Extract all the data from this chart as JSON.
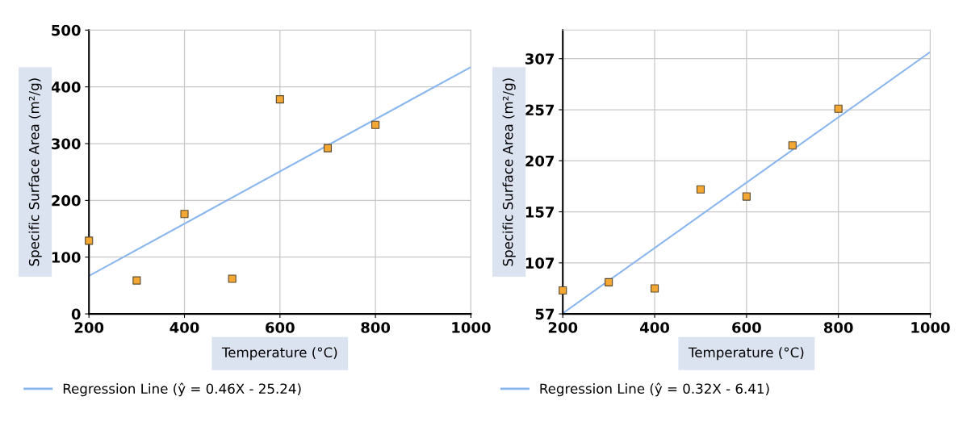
{
  "chart_data": [
    {
      "type": "scatter",
      "xlabel": "Temperature (°C)",
      "ylabel": "Specific Surface Area (m²/g)",
      "xlim": [
        200,
        1000
      ],
      "xticks": [
        200,
        400,
        600,
        800,
        1000
      ],
      "ylim": [
        0,
        500
      ],
      "yticks": [
        0,
        100,
        200,
        300,
        400,
        500
      ],
      "grid": true,
      "legend": "bottom",
      "series": [
        {
          "color": "#f5a733",
          "marker": "square",
          "x": [
            200,
            300,
            400,
            500,
            600,
            700,
            800
          ],
          "values": [
            129,
            59,
            176,
            62,
            378,
            292,
            333
          ]
        },
        {
          "type": "line",
          "marker": "none",
          "name": "Regression Line (ŷ = 0.46X - 25.24)",
          "color": "#8ab6ee",
          "x": [
            200,
            1000
          ],
          "values": [
            67,
            435
          ]
        }
      ]
    },
    {
      "type": "scatter",
      "xlabel": "Temperature (°C)",
      "ylabel": "Specific Surface Area (m²/g)",
      "xlim": [
        200,
        1000
      ],
      "xticks": [
        200,
        400,
        600,
        800,
        1000
      ],
      "ylim": [
        57,
        335
      ],
      "yticks": [
        57,
        107,
        157,
        207,
        257,
        307
      ],
      "grid": true,
      "legend": "bottom",
      "series": [
        {
          "color": "#f5a733",
          "marker": "square",
          "x": [
            200,
            300,
            400,
            500,
            600,
            700,
            800
          ],
          "values": [
            80,
            88,
            82,
            179,
            172,
            222,
            258
          ]
        },
        {
          "type": "line",
          "marker": "none",
          "name": "Regression Line (ŷ = 0.32X - 6.41)",
          "color": "#8ab6ee",
          "x": [
            200,
            1000
          ],
          "values": [
            57.6,
            313.6
          ]
        }
      ]
    }
  ]
}
